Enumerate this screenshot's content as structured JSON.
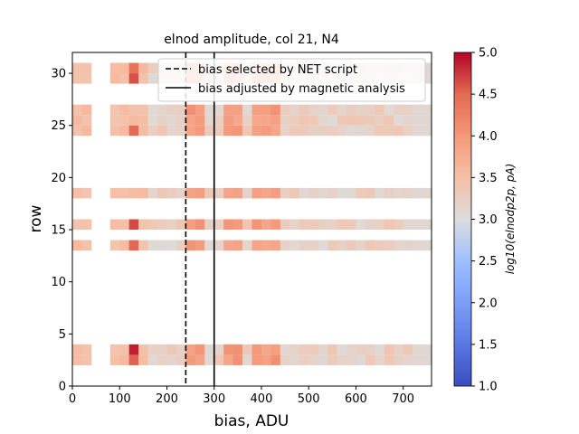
{
  "chart_data": {
    "type": "heatmap",
    "title": "elnod amplitude, col 21, N4",
    "xlabel": "bias, ADU",
    "ylabel": "row",
    "xlim": [
      0,
      760
    ],
    "ylim": [
      0,
      32
    ],
    "xticks": [
      0,
      100,
      200,
      300,
      400,
      500,
      600,
      700
    ],
    "yticks": [
      0,
      5,
      10,
      15,
      20,
      25,
      30
    ],
    "colorbar": {
      "label": "log10(elnodp2p, pA)",
      "range": [
        1.0,
        5.0
      ],
      "ticks": [
        "1.0",
        "1.5",
        "2.0",
        "2.5",
        "3.0",
        "3.5",
        "4.0",
        "4.5",
        "5.0"
      ],
      "colormap": "coolwarm"
    },
    "bias_bin_width": 20,
    "gap_bins": [
      2,
      3
    ],
    "rows_present": [
      2,
      3,
      13,
      15,
      18,
      24,
      25,
      26,
      29,
      30
    ],
    "hot_columns": {
      "red_bias": [
        120
      ],
      "orange_bias": [
        240,
        260,
        320,
        340,
        380,
        400,
        420
      ]
    },
    "lines": [
      {
        "label": "bias selected by NET script",
        "x": 240,
        "style": "dashed"
      },
      {
        "label": "bias adjusted by magnetic analysis",
        "x": 300,
        "style": "solid"
      }
    ],
    "legend_placement": "top-right"
  }
}
